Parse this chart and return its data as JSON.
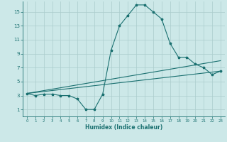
{
  "xlabel": "Humidex (Indice chaleur)",
  "bg_color": "#cce8e8",
  "grid_color": "#aacccc",
  "line_color": "#1a7070",
  "xlim": [
    -0.5,
    23.5
  ],
  "ylim": [
    0,
    16.5
  ],
  "xticks": [
    0,
    1,
    2,
    3,
    4,
    5,
    6,
    7,
    8,
    9,
    10,
    11,
    12,
    13,
    14,
    15,
    16,
    17,
    18,
    19,
    20,
    21,
    22,
    23
  ],
  "yticks": [
    1,
    3,
    5,
    7,
    9,
    11,
    13,
    15
  ],
  "curve1_x": [
    0,
    1,
    2,
    3,
    4,
    5,
    6,
    7,
    8,
    9,
    10,
    11,
    12,
    13,
    14,
    15,
    16,
    17,
    18,
    19,
    20,
    21,
    22,
    23
  ],
  "curve1_y": [
    3.3,
    3.0,
    3.2,
    3.2,
    3.0,
    3.0,
    2.5,
    1.0,
    1.0,
    3.2,
    9.5,
    13.0,
    14.5,
    16.0,
    16.0,
    15.0,
    14.0,
    10.5,
    8.5,
    8.5,
    7.5,
    7.0,
    6.0,
    6.5
  ],
  "curve2_x": [
    0,
    23
  ],
  "curve2_y": [
    3.3,
    8.0
  ],
  "curve3_x": [
    0,
    23
  ],
  "curve3_y": [
    3.3,
    6.5
  ]
}
